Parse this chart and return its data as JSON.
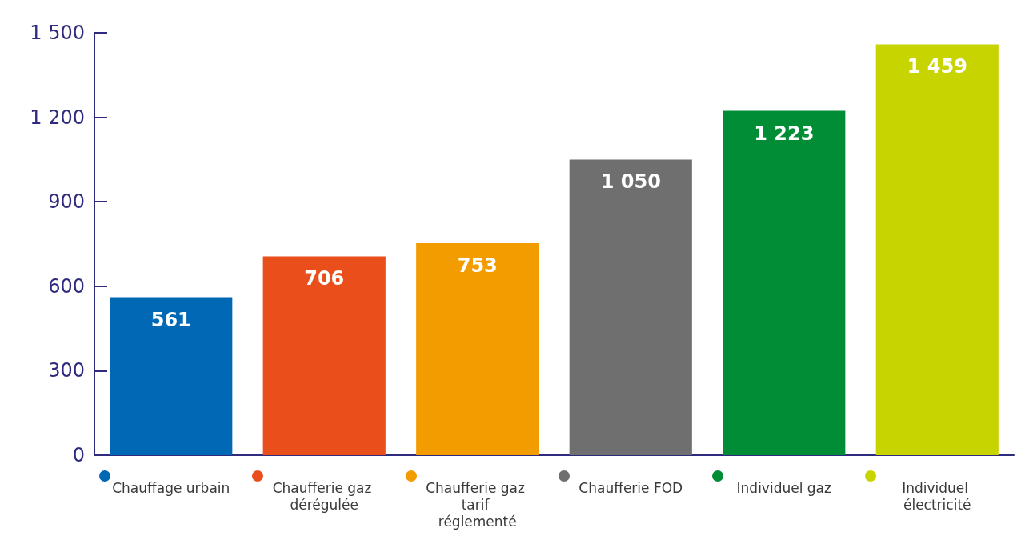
{
  "chart_data": {
    "type": "bar",
    "categories": [
      "Chauffage urbain",
      "Chaufferie gaz dérégulée",
      "Chaufferie gaz tarif réglementé",
      "Chaufferie FOD",
      "Individuel gaz",
      "Individuel électricité"
    ],
    "values": [
      561,
      706,
      753,
      1050,
      1223,
      1459
    ],
    "colors": [
      "#0068b4",
      "#e94e1b",
      "#f39c00",
      "#706f6f",
      "#008d36",
      "#c8d400"
    ],
    "value_labels": [
      "561",
      "706",
      "753",
      "1 050",
      "1 223",
      "1 459"
    ],
    "ylim": [
      0,
      1500
    ],
    "yticks": [
      0,
      300,
      600,
      900,
      {
        "value": 1200,
        "label": "1 200"
      },
      {
        "value": 1500,
        "label": "1 500"
      }
    ],
    "grid": false
  }
}
